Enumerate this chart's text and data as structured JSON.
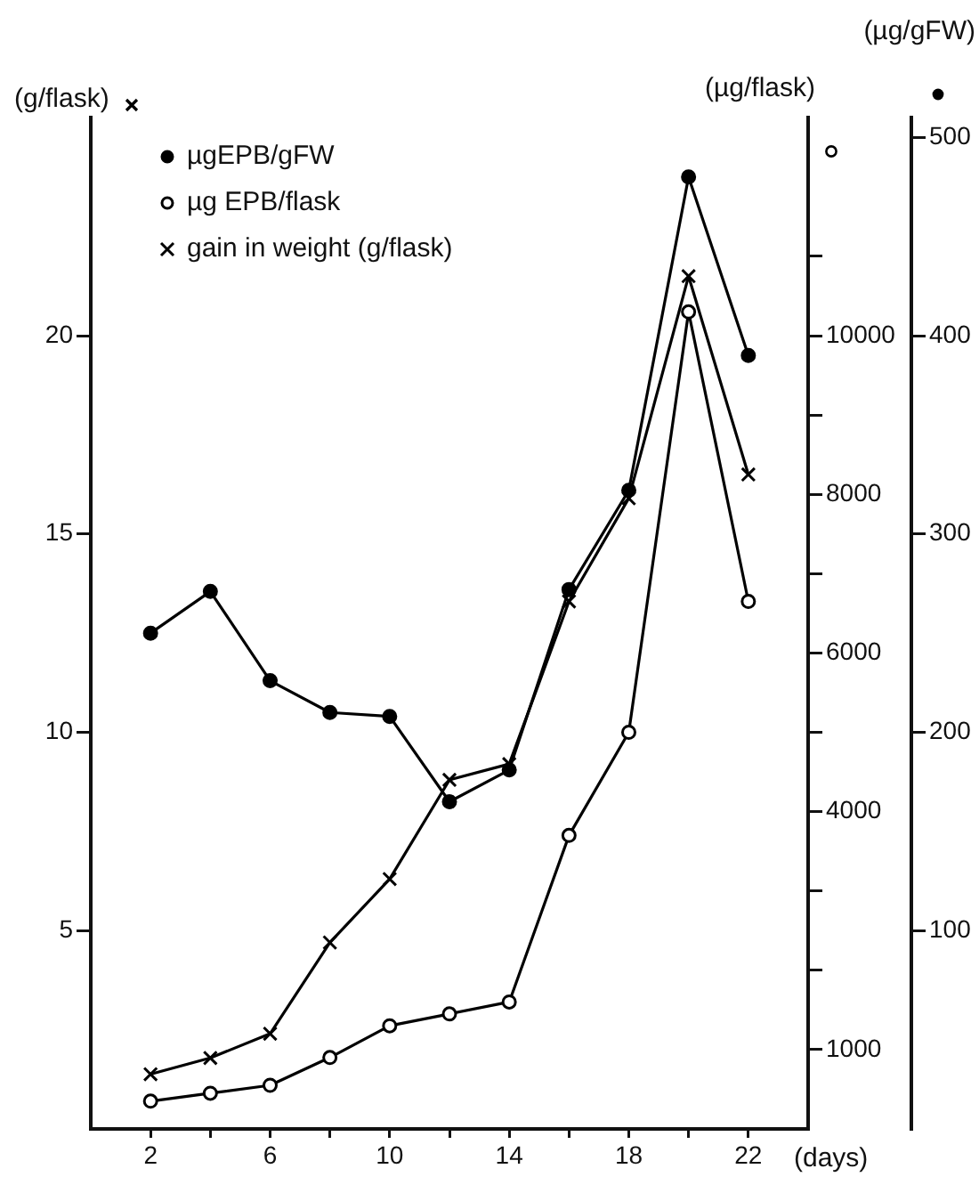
{
  "chart_data": {
    "type": "line",
    "x": [
      2,
      4,
      6,
      8,
      10,
      12,
      14,
      16,
      18,
      20,
      22
    ],
    "series": [
      {
        "name": "µgEPB/gFW",
        "color": "#000000",
        "axis": "y3",
        "marker": "circle",
        "values": [
          250,
          271,
          226,
          210,
          208,
          165,
          181,
          272,
          322,
          480,
          390
        ]
      },
      {
        "name": "µg EPB/flask",
        "color": "#000000",
        "axis": "y2",
        "marker": "circle",
        "values": [
          350,
          450,
          550,
          900,
          1300,
          1450,
          1600,
          3700,
          5000,
          10300,
          6650
        ]
      },
      {
        "name": "gain in weight (g/flask)",
        "color": "#000000",
        "axis": "y",
        "marker": "cross",
        "values": [
          1.38,
          1.79,
          2.4,
          4.7,
          6.3,
          8.8,
          9.2,
          13.3,
          15.9,
          21.5,
          16.5
        ]
      }
    ],
    "xlabel": "(days)",
    "ylabel": "(g/flask)",
    "y2label": "(µg/flask)",
    "y3label": "(µg/gFW)",
    "xlim": [
      0,
      24
    ],
    "xticks": [
      2,
      {
        "value": 4,
        "label": null
      },
      6,
      {
        "value": 8,
        "label": null
      },
      10,
      {
        "value": 12,
        "label": null
      },
      14,
      {
        "value": 16,
        "label": null
      },
      18,
      {
        "value": 20,
        "label": null
      },
      22
    ],
    "ylim": [
      0,
      25.5
    ],
    "yticks": [
      5,
      10,
      15,
      20
    ],
    "y2lim": [
      0,
      12750
    ],
    "y2ticks": [
      1000,
      {
        "value": 2000,
        "label": null
      },
      {
        "value": 3000,
        "label": null
      },
      4000,
      {
        "value": 5000,
        "label": null
      },
      6000,
      {
        "value": 7000,
        "label": null
      },
      8000,
      {
        "value": 9000,
        "label": null
      },
      10000,
      {
        "value": 11000,
        "label": null
      }
    ],
    "y3lim": [
      0,
      510
    ],
    "y3ticks": [
      100,
      200,
      300,
      400,
      500
    ],
    "grid": false,
    "legend": "top left",
    "line_style": "solid"
  }
}
